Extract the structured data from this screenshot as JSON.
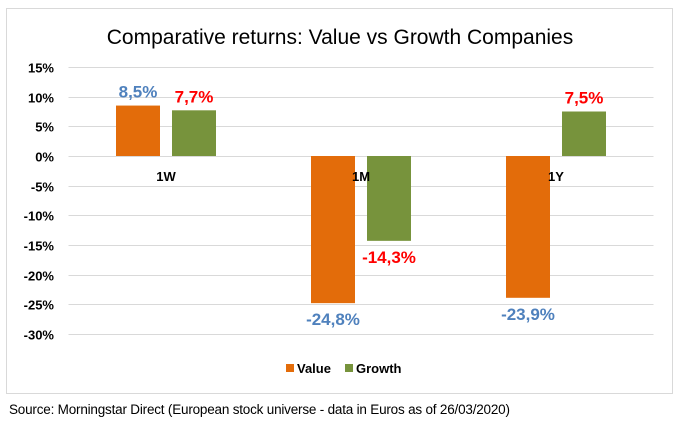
{
  "chart_data": {
    "type": "bar",
    "title": "Comparative returns: Value vs Growth Companies",
    "xlabel": "",
    "ylabel": "",
    "categories": [
      "1W",
      "1M",
      "1Y"
    ],
    "series": [
      {
        "name": "Value",
        "color": "#e36c0a",
        "label_color": "#4f81bd",
        "values": [
          8.5,
          -24.8,
          -23.9
        ],
        "labels": [
          "8,5%",
          "-24,8%",
          "-23,9%"
        ]
      },
      {
        "name": "Growth",
        "color": "#77933c",
        "label_color": "#ff0000",
        "values": [
          7.7,
          -14.3,
          7.5
        ],
        "labels": [
          "7,7%",
          "-14,3%",
          "7,5%"
        ]
      }
    ],
    "ylim": [
      -30,
      15
    ],
    "yticks": [
      15,
      10,
      5,
      0,
      -5,
      -10,
      -15,
      -20,
      -25,
      -30
    ],
    "ytick_labels": [
      "15%",
      "10%",
      "5%",
      "0%",
      "-5%",
      "-10%",
      "-15%",
      "-20%",
      "-25%",
      "-30%"
    ],
    "grid": true,
    "legend": {
      "position": "bottom",
      "entries": [
        "Value",
        "Growth"
      ]
    },
    "colors": {
      "gridline": "#d9d9d9",
      "axis_text": "#000000",
      "title_text": "#000000"
    }
  },
  "footer": {
    "source": "Source: Morningstar Direct (European stock universe - data in Euros as of 26/03/2020)"
  }
}
